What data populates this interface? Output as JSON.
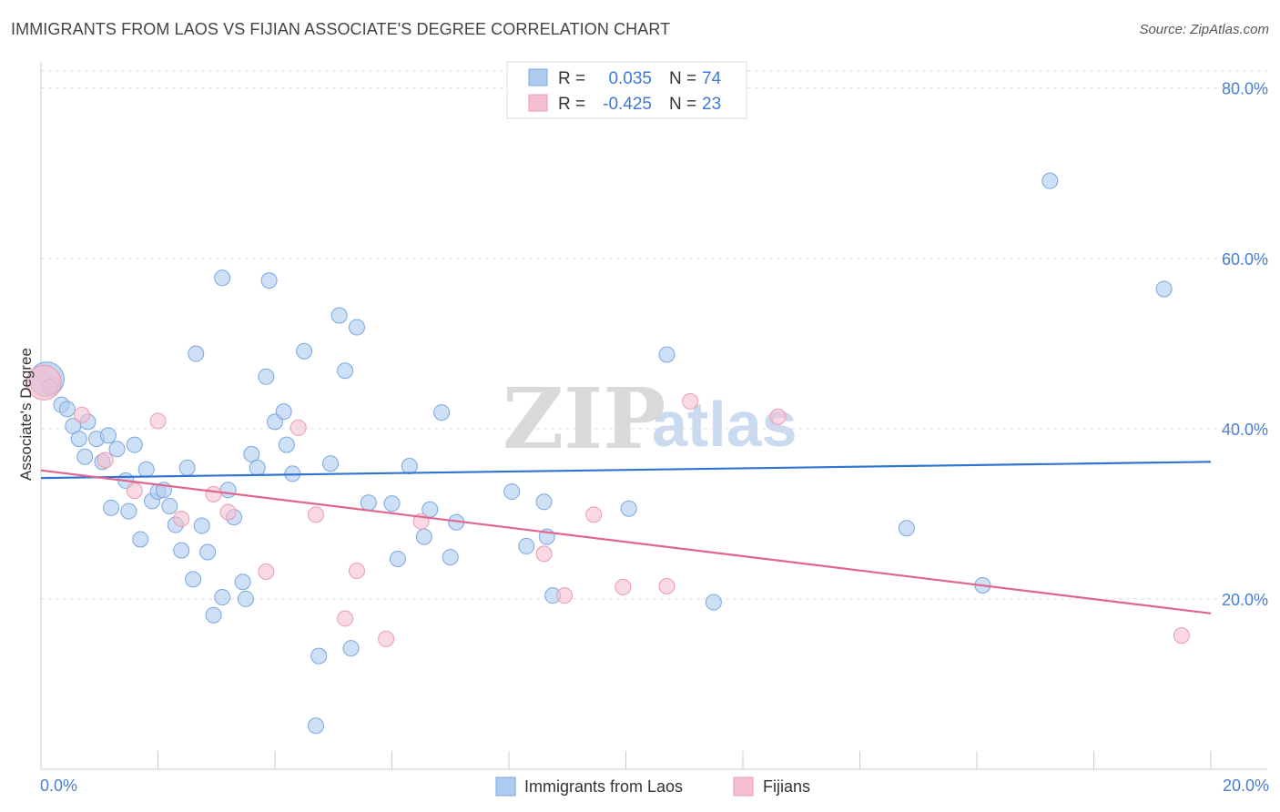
{
  "header": {
    "title": "IMMIGRANTS FROM LAOS VS FIJIAN ASSOCIATE'S DEGREE CORRELATION CHART",
    "source": "Source: ZipAtlas.com"
  },
  "watermark": {
    "zip": "ZIP",
    "atlas": "atlas"
  },
  "legend_top": [
    {
      "r_label": "R =",
      "r_value": "0.035",
      "n_label": "N =",
      "n_value": "74",
      "color": "#aecbf0"
    },
    {
      "r_label": "R =",
      "r_value": "-0.425",
      "n_label": "N =",
      "n_value": "23",
      "color": "#f5bfd0"
    }
  ],
  "chart_data": {
    "type": "scatter",
    "title": "IMMIGRANTS FROM LAOS VS FIJIAN ASSOCIATE'S DEGREE CORRELATION CHART",
    "xlabel": "",
    "ylabel": "Associate's Degree",
    "xlim": [
      0,
      20
    ],
    "ylim": [
      0,
      82
    ],
    "x_tick_labels": [
      "0.0%",
      "20.0%"
    ],
    "y_ticks": [
      20,
      40,
      60,
      80
    ],
    "y_tick_labels": [
      "20.0%",
      "40.0%",
      "60.0%",
      "80.0%"
    ],
    "grid": true,
    "legend_position": "top-center",
    "series": [
      {
        "name": "Immigrants from Laos",
        "color": "#aecbf0",
        "edge": "#7aa6e0",
        "trend_color": "#2f74d0",
        "trend": {
          "x": [
            0,
            20
          ],
          "y": [
            34.2,
            36.1
          ]
        },
        "points": [
          {
            "x": 0.1,
            "y": 45.8,
            "big": true
          },
          {
            "x": 0.2,
            "y": 45.1
          },
          {
            "x": 0.35,
            "y": 42.8
          },
          {
            "x": 0.45,
            "y": 42.3
          },
          {
            "x": 0.55,
            "y": 40.3
          },
          {
            "x": 0.65,
            "y": 38.8
          },
          {
            "x": 0.75,
            "y": 36.7
          },
          {
            "x": 0.8,
            "y": 40.8
          },
          {
            "x": 0.95,
            "y": 38.8
          },
          {
            "x": 1.05,
            "y": 36.1
          },
          {
            "x": 1.15,
            "y": 39.2
          },
          {
            "x": 1.2,
            "y": 30.7
          },
          {
            "x": 1.3,
            "y": 37.6
          },
          {
            "x": 1.45,
            "y": 33.9
          },
          {
            "x": 1.5,
            "y": 30.3
          },
          {
            "x": 1.6,
            "y": 38.1
          },
          {
            "x": 1.7,
            "y": 27.0
          },
          {
            "x": 1.8,
            "y": 35.2
          },
          {
            "x": 1.9,
            "y": 31.5
          },
          {
            "x": 2.0,
            "y": 32.6
          },
          {
            "x": 2.1,
            "y": 32.8
          },
          {
            "x": 2.2,
            "y": 30.9
          },
          {
            "x": 2.3,
            "y": 28.7
          },
          {
            "x": 2.4,
            "y": 25.7
          },
          {
            "x": 2.5,
            "y": 35.4
          },
          {
            "x": 2.6,
            "y": 22.3
          },
          {
            "x": 2.65,
            "y": 48.8
          },
          {
            "x": 2.75,
            "y": 28.6
          },
          {
            "x": 2.85,
            "y": 25.5
          },
          {
            "x": 2.95,
            "y": 18.1
          },
          {
            "x": 3.1,
            "y": 20.2
          },
          {
            "x": 3.1,
            "y": 57.7
          },
          {
            "x": 3.2,
            "y": 32.8
          },
          {
            "x": 3.3,
            "y": 29.6
          },
          {
            "x": 3.45,
            "y": 22.0
          },
          {
            "x": 3.5,
            "y": 20.0
          },
          {
            "x": 3.6,
            "y": 37.0
          },
          {
            "x": 3.7,
            "y": 35.4
          },
          {
            "x": 3.85,
            "y": 46.1
          },
          {
            "x": 3.9,
            "y": 57.4
          },
          {
            "x": 4.0,
            "y": 40.8
          },
          {
            "x": 4.15,
            "y": 42.0
          },
          {
            "x": 4.2,
            "y": 38.1
          },
          {
            "x": 4.3,
            "y": 34.7
          },
          {
            "x": 4.5,
            "y": 49.1
          },
          {
            "x": 4.7,
            "y": 5.1
          },
          {
            "x": 4.75,
            "y": 13.3
          },
          {
            "x": 4.95,
            "y": 35.9
          },
          {
            "x": 5.1,
            "y": 53.3
          },
          {
            "x": 5.2,
            "y": 46.8
          },
          {
            "x": 5.3,
            "y": 14.2
          },
          {
            "x": 5.4,
            "y": 51.9
          },
          {
            "x": 5.6,
            "y": 31.3
          },
          {
            "x": 6.0,
            "y": 31.2
          },
          {
            "x": 6.1,
            "y": 24.7
          },
          {
            "x": 6.3,
            "y": 35.6
          },
          {
            "x": 6.55,
            "y": 27.3
          },
          {
            "x": 6.65,
            "y": 30.5
          },
          {
            "x": 6.85,
            "y": 41.9
          },
          {
            "x": 7.0,
            "y": 24.9
          },
          {
            "x": 7.1,
            "y": 29.0
          },
          {
            "x": 8.05,
            "y": 32.6
          },
          {
            "x": 8.3,
            "y": 26.2
          },
          {
            "x": 8.6,
            "y": 31.4
          },
          {
            "x": 8.65,
            "y": 27.3
          },
          {
            "x": 8.75,
            "y": 20.4
          },
          {
            "x": 10.05,
            "y": 30.6
          },
          {
            "x": 10.7,
            "y": 48.7
          },
          {
            "x": 11.5,
            "y": 19.6
          },
          {
            "x": 14.8,
            "y": 28.3
          },
          {
            "x": 16.1,
            "y": 21.6
          },
          {
            "x": 17.25,
            "y": 69.1
          },
          {
            "x": 19.2,
            "y": 56.4
          },
          {
            "x": 0.15,
            "y": 44.9
          }
        ]
      },
      {
        "name": "Fijians",
        "color": "#f5bfd0",
        "edge": "#ec9ab3",
        "trend_color": "#e0668f",
        "trend": {
          "x": [
            0,
            20
          ],
          "y": [
            35.1,
            18.3
          ]
        },
        "points": [
          {
            "x": 0.05,
            "y": 45.4,
            "big": true
          },
          {
            "x": 0.7,
            "y": 41.6
          },
          {
            "x": 1.1,
            "y": 36.3
          },
          {
            "x": 1.6,
            "y": 32.7
          },
          {
            "x": 2.0,
            "y": 40.9
          },
          {
            "x": 2.4,
            "y": 29.4
          },
          {
            "x": 2.95,
            "y": 32.3
          },
          {
            "x": 3.2,
            "y": 30.2
          },
          {
            "x": 3.85,
            "y": 23.2
          },
          {
            "x": 4.4,
            "y": 40.1
          },
          {
            "x": 4.7,
            "y": 29.9
          },
          {
            "x": 5.2,
            "y": 17.7
          },
          {
            "x": 5.4,
            "y": 23.3
          },
          {
            "x": 5.9,
            "y": 15.3
          },
          {
            "x": 6.5,
            "y": 29.1
          },
          {
            "x": 8.6,
            "y": 25.3
          },
          {
            "x": 8.95,
            "y": 20.4
          },
          {
            "x": 9.45,
            "y": 29.9
          },
          {
            "x": 9.95,
            "y": 21.4
          },
          {
            "x": 10.7,
            "y": 21.5
          },
          {
            "x": 11.1,
            "y": 43.2
          },
          {
            "x": 12.6,
            "y": 41.4
          },
          {
            "x": 19.5,
            "y": 15.7
          }
        ]
      }
    ]
  },
  "legend_bottom": [
    {
      "label": "Immigrants from Laos",
      "color": "#aecbf0"
    },
    {
      "label": "Fijians",
      "color": "#f5bfd0"
    }
  ]
}
